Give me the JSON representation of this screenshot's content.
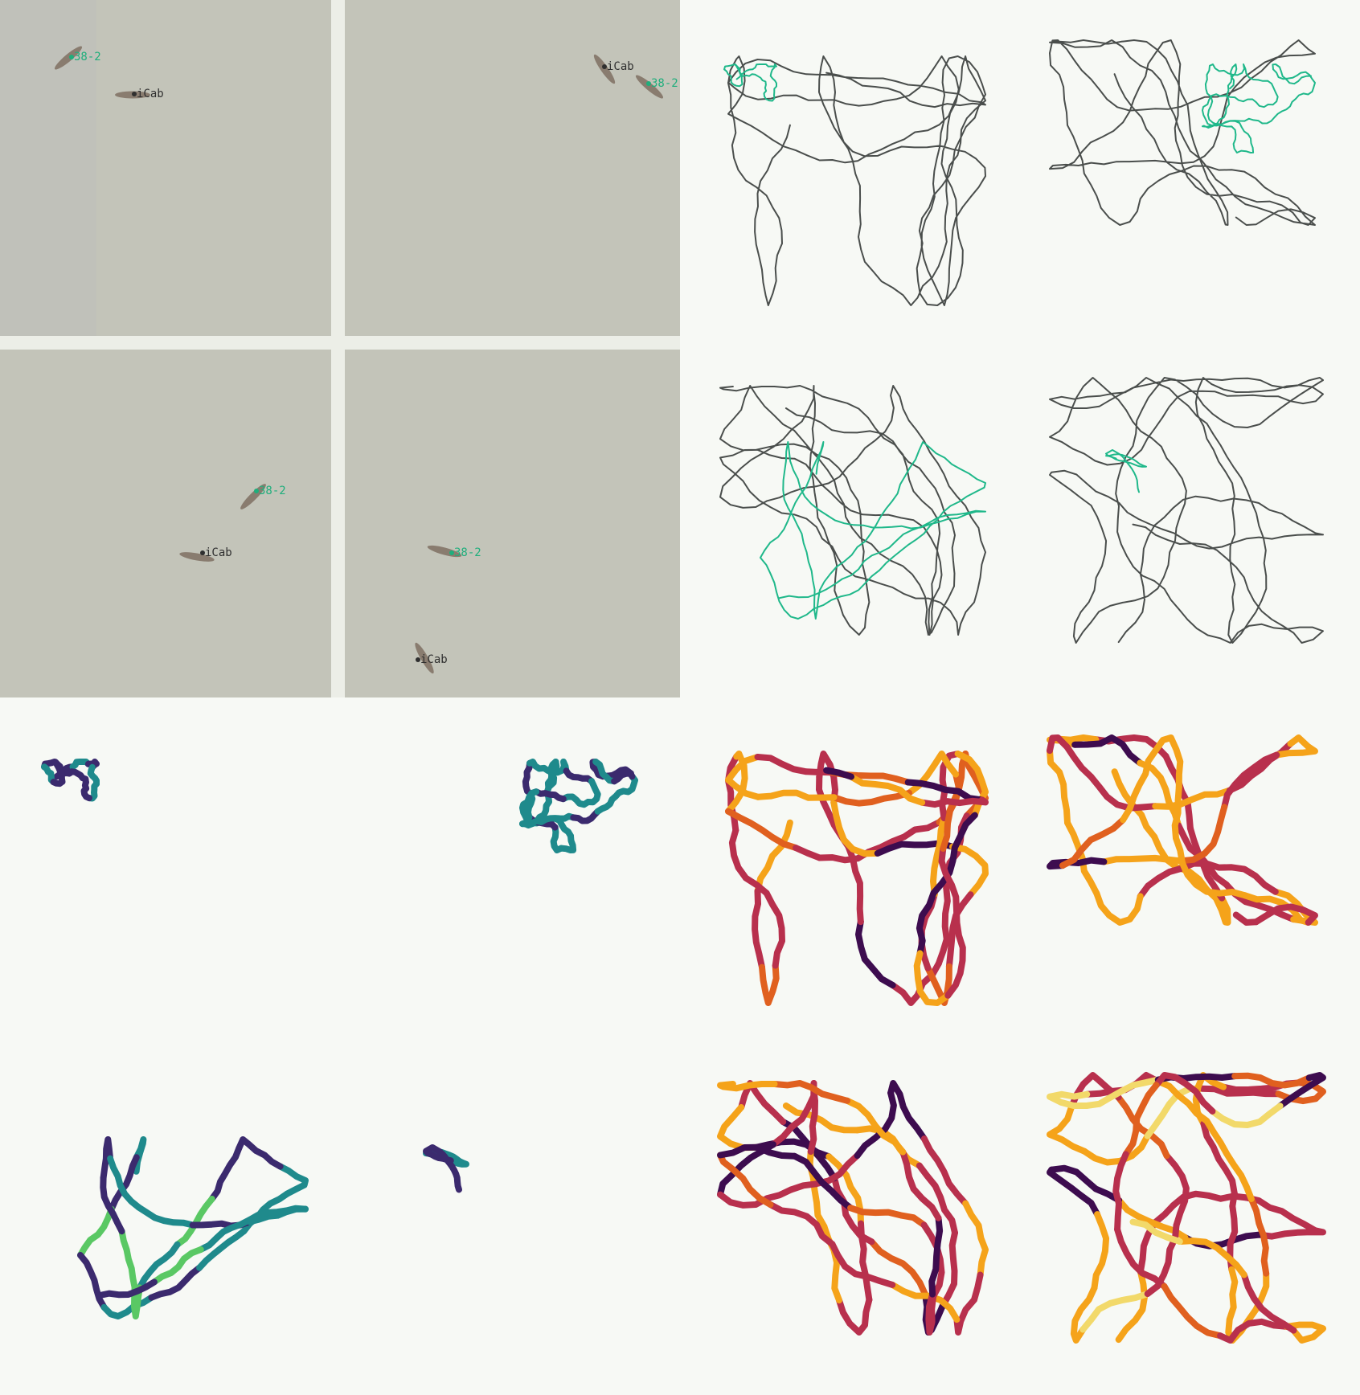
{
  "video": {
    "fish": [
      {
        "label": "38-2",
        "strain": "mutant"
      },
      {
        "label": "iCab",
        "strain": "reference"
      },
      {
        "label": "iCab",
        "strain": "reference"
      },
      {
        "label": "38-2",
        "strain": "mutant"
      },
      {
        "label": "38-2",
        "strain": "mutant"
      },
      {
        "label": "iCab",
        "strain": "reference"
      },
      {
        "label": "38-2",
        "strain": "mutant"
      },
      {
        "label": "iCab",
        "strain": "reference"
      }
    ]
  },
  "colors": {
    "mutant_label": "#1fae7c",
    "reference_label": "#2f2f2f",
    "tank_floor": "#c3c4b9",
    "tank_divider": "#eceee7",
    "reference_track": "#4a4e4c",
    "mutant_track": "#1fb88a",
    "viridis_low": "#3b2a6e",
    "viridis_mid": "#1f8a8c",
    "viridis_high": "#5ac864",
    "inferno_low": "#3d0c4f",
    "inferno_mid": "#b8304d",
    "inferno_high": "#f5a31a"
  },
  "icons": {
    "fish": "fish-icon"
  }
}
